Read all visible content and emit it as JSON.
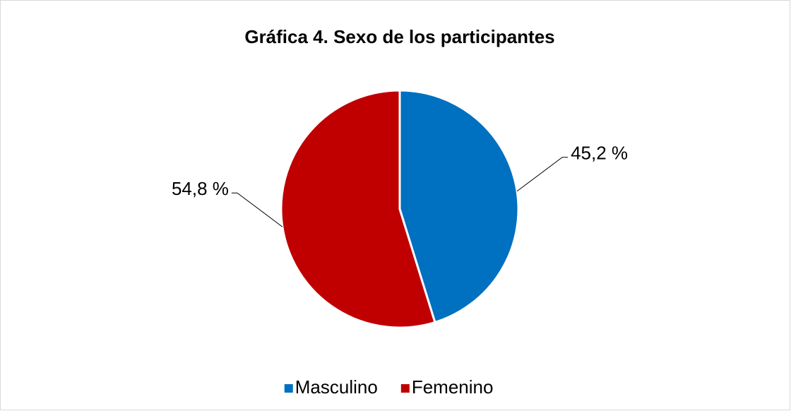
{
  "chart_data": {
    "type": "pie",
    "title": "Gráfica 4. Sexo de los participantes",
    "categories": [
      "Masculino",
      "Femenino"
    ],
    "values": [
      45.2,
      54.8
    ],
    "value_labels": [
      "45,2 %",
      "54,8 %"
    ],
    "colors": [
      "#0070c0",
      "#c00000"
    ],
    "legend": "bottom"
  }
}
